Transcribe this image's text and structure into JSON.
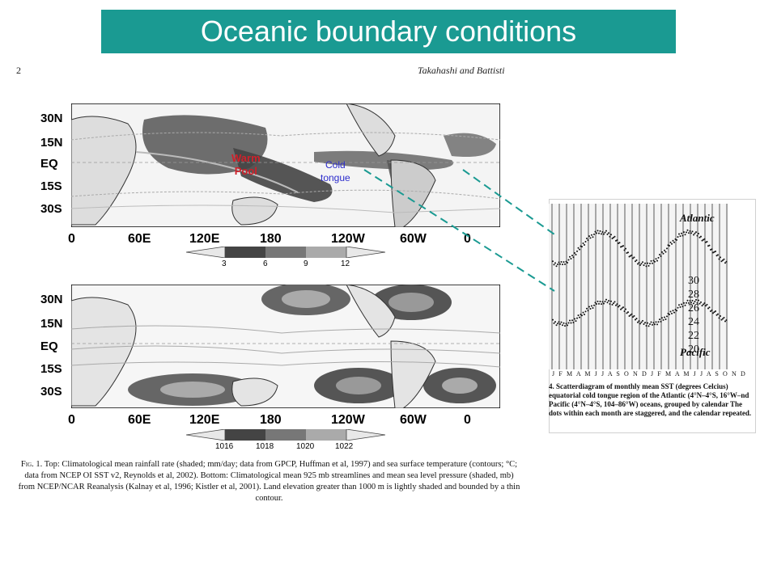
{
  "slide": {
    "title": "Oceanic boundary conditions",
    "accent_color": "#1a9a92"
  },
  "paper": {
    "page_number": "2",
    "authors": "Takahashi and Battisti"
  },
  "top_map": {
    "lat_labels": [
      "30N",
      "15N",
      "EQ",
      "15S",
      "30S"
    ],
    "lon_labels": [
      "0",
      "60E",
      "120E",
      "180",
      "120W",
      "60W",
      "0"
    ],
    "colorbar_labels": [
      "3",
      "6",
      "9",
      "12"
    ],
    "annotations": {
      "warm_pool_line1": "Warm",
      "warm_pool_line2": "Pool",
      "cold_tongue_line1": "Cold",
      "cold_tongue_line2": "tongue"
    }
  },
  "bottom_map": {
    "lat_labels": [
      "30N",
      "15N",
      "EQ",
      "15S",
      "30S"
    ],
    "lon_labels": [
      "0",
      "60E",
      "120E",
      "180",
      "120W",
      "60W",
      "0"
    ],
    "colorbar_labels": [
      "1016",
      "1018",
      "1020",
      "1022"
    ]
  },
  "caption": {
    "fig_label": "Fig. 1.",
    "text": "Top: Climatological mean rainfall rate (shaded; mm/day; data from GPCP, Huffman et al, 1997) and sea surface temperature (contours; °C; data from NCEP OI SST v2, Reynolds et al, 2002). Bottom: Climatological mean 925 mb streamlines and mean sea level pressure (shaded, mb) from NCEP/NCAR Reanalysis (Kalnay et al, 1996; Kistler et al, 2001). Land elevation greater than 1000 m is lightly shaded and bounded by a thin contour."
  },
  "sst_panel": {
    "label_atlantic": "Atlantic",
    "label_pacific": "Pacific",
    "y_ticks": [
      "30",
      "28",
      "26",
      "24",
      "22",
      "20"
    ],
    "months": "J F M A M J J A S O N D J F M A M J J A S O N D",
    "caption": "4. Scatterdiagram of monthly mean SST (degrees Celcius) equatorial cold tongue region of the Atlantic (4°N–4°S, 16°W–nd Pacific (4°N–4°S, 104–86°W) oceans, grouped by calendar The dots within each month are staggered, and the calendar repeated."
  }
}
